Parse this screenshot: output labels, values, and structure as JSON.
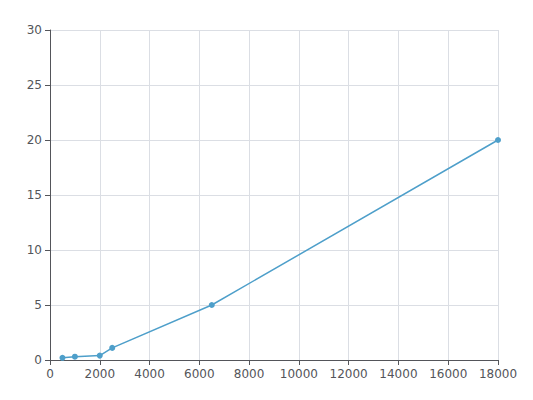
{
  "chart_data": {
    "type": "line",
    "x": [
      500,
      1000,
      2000,
      2500,
      6500,
      18000
    ],
    "values": [
      0.2,
      0.3,
      0.4,
      1.1,
      5.0,
      20.0
    ],
    "color": "#4e9fca",
    "marker": "circle",
    "xlim": [
      0,
      18000
    ],
    "ylim": [
      0,
      30
    ],
    "xticks": [
      0,
      2000,
      4000,
      6000,
      8000,
      10000,
      12000,
      14000,
      16000,
      18000
    ],
    "yticks": [
      0,
      5,
      10,
      15,
      20,
      25,
      30
    ],
    "grid": true
  }
}
